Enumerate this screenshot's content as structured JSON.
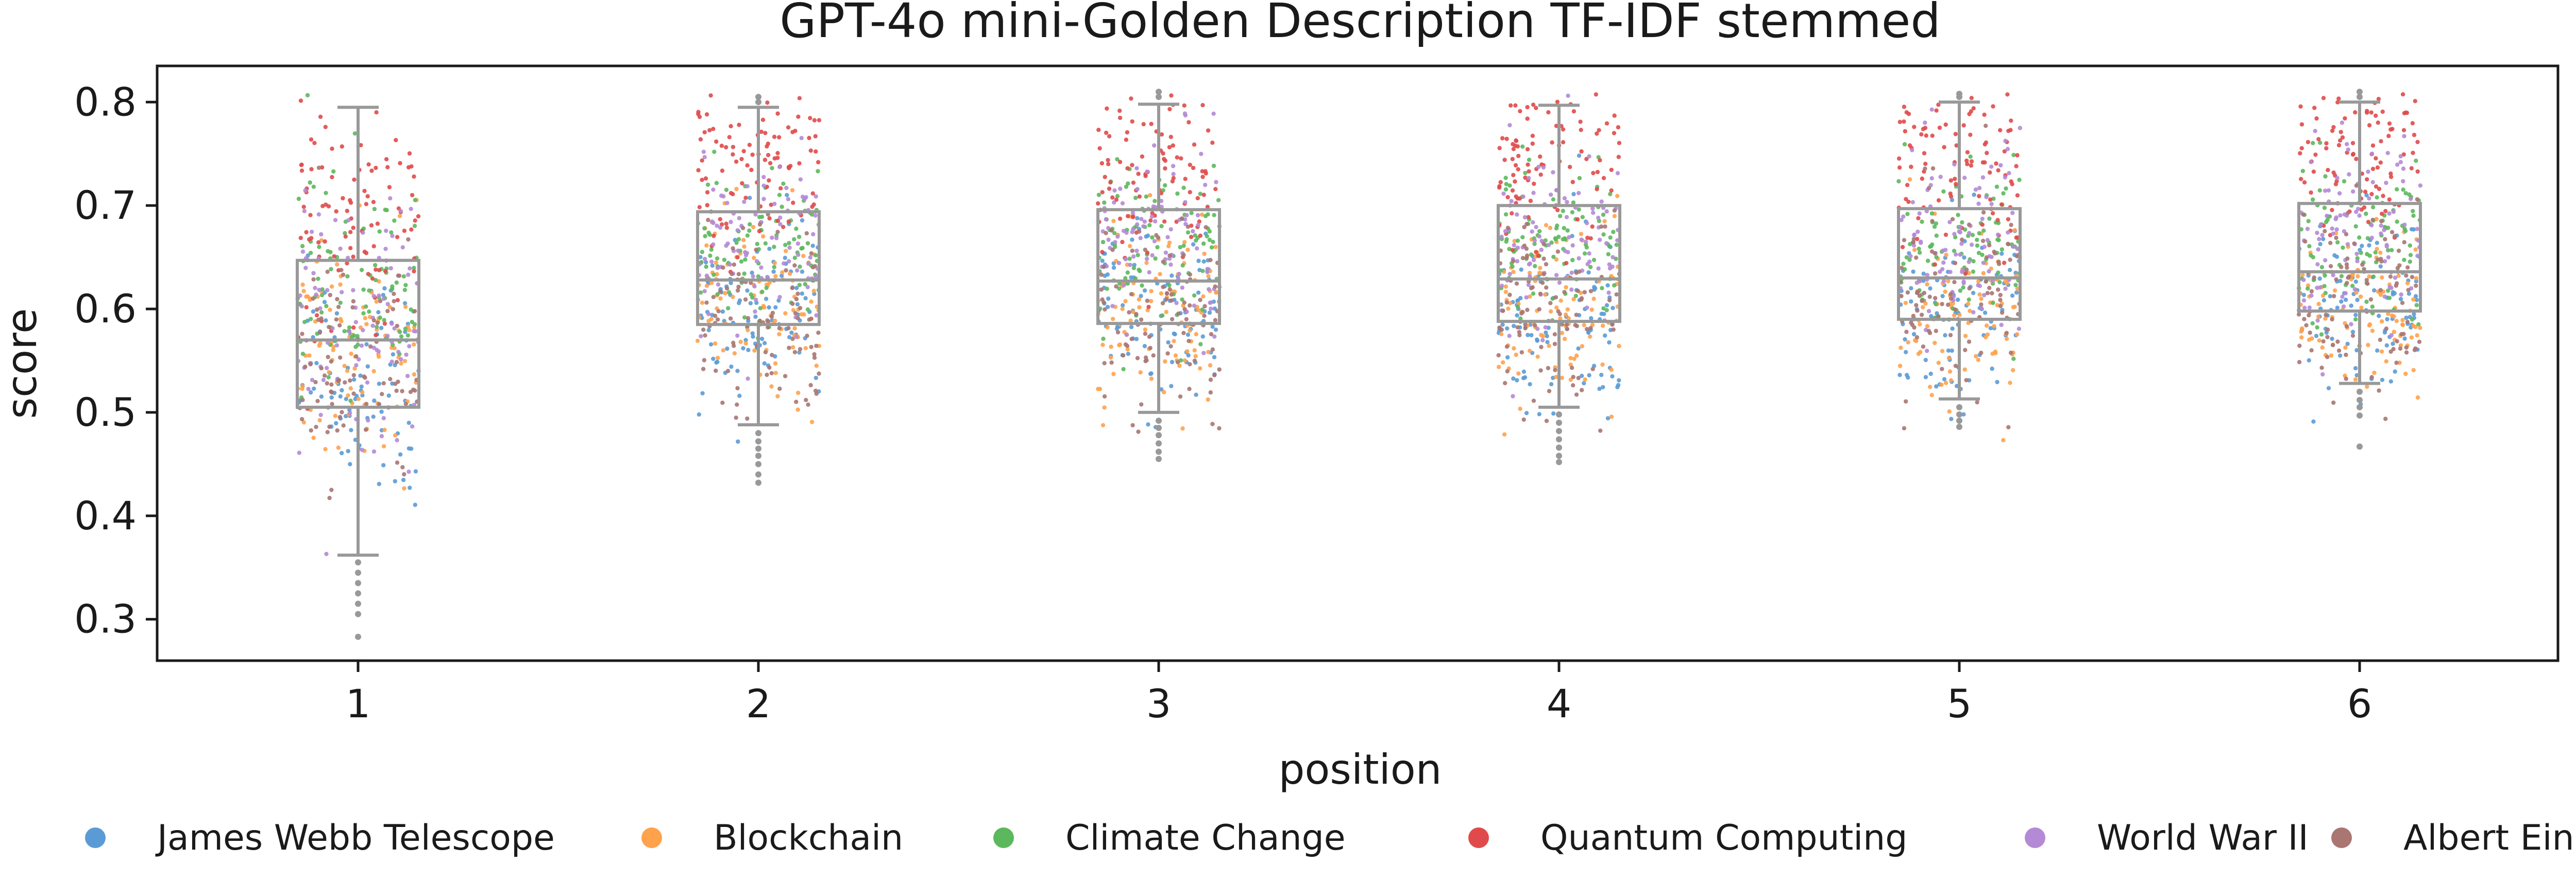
{
  "chart_data": {
    "type": "box+strip",
    "title": "GPT-4o mini-Golden Description TF-IDF stemmed",
    "xlabel": "position",
    "ylabel": "score",
    "categories": [
      "1",
      "2",
      "3",
      "4",
      "5",
      "6"
    ],
    "ylim": [
      0.26,
      0.835
    ],
    "yticks": [
      "0.3",
      "0.4",
      "0.5",
      "0.6",
      "0.7",
      "0.8"
    ],
    "legend_position": "bottom",
    "box_color": "#999999",
    "boxes": [
      {
        "position": "1",
        "q1": 0.505,
        "median": 0.57,
        "q3": 0.647,
        "whisker_low": 0.362,
        "whisker_high": 0.795,
        "outliers": [
          0.355,
          0.345,
          0.335,
          0.325,
          0.315,
          0.305,
          0.283
        ]
      },
      {
        "position": "2",
        "q1": 0.585,
        "median": 0.628,
        "q3": 0.694,
        "whisker_low": 0.488,
        "whisker_high": 0.795,
        "outliers": [
          0.48,
          0.472,
          0.465,
          0.458,
          0.45,
          0.44,
          0.432,
          0.8,
          0.805
        ]
      },
      {
        "position": "3",
        "q1": 0.586,
        "median": 0.627,
        "q3": 0.696,
        "whisker_low": 0.5,
        "whisker_high": 0.798,
        "outliers": [
          0.492,
          0.485,
          0.478,
          0.47,
          0.462,
          0.455,
          0.805,
          0.81
        ]
      },
      {
        "position": "4",
        "q1": 0.588,
        "median": 0.629,
        "q3": 0.7,
        "whisker_low": 0.505,
        "whisker_high": 0.797,
        "outliers": [
          0.498,
          0.49,
          0.482,
          0.474,
          0.466,
          0.458,
          0.452
        ]
      },
      {
        "position": "5",
        "q1": 0.59,
        "median": 0.63,
        "q3": 0.697,
        "whisker_low": 0.513,
        "whisker_high": 0.8,
        "outliers": [
          0.505,
          0.498,
          0.492,
          0.486,
          0.805,
          0.808
        ]
      },
      {
        "position": "6",
        "q1": 0.598,
        "median": 0.636,
        "q3": 0.702,
        "whisker_low": 0.528,
        "whisker_high": 0.8,
        "outliers": [
          0.52,
          0.512,
          0.505,
          0.497,
          0.467,
          0.805,
          0.81
        ]
      }
    ],
    "series": [
      {
        "name": "James Webb Telescope",
        "color": "#5b9bd5",
        "center": [
          0.53,
          0.6,
          0.595,
          0.595,
          0.605,
          0.61
        ],
        "spread": [
          0.06,
          0.045,
          0.045,
          0.045,
          0.042,
          0.04
        ]
      },
      {
        "name": "Blockchain",
        "color": "#ffa24c",
        "center": [
          0.56,
          0.595,
          0.592,
          0.597,
          0.598,
          0.605
        ],
        "spread": [
          0.055,
          0.045,
          0.045,
          0.045,
          0.045,
          0.04
        ]
      },
      {
        "name": "Climate Change",
        "color": "#5cb85c",
        "center": [
          0.62,
          0.655,
          0.655,
          0.66,
          0.66,
          0.665
        ],
        "spread": [
          0.05,
          0.04,
          0.04,
          0.04,
          0.04,
          0.04
        ]
      },
      {
        "name": "Quantum Computing",
        "color": "#e04a4a",
        "center": [
          0.69,
          0.735,
          0.735,
          0.74,
          0.74,
          0.745
        ],
        "spread": [
          0.055,
          0.04,
          0.04,
          0.04,
          0.04,
          0.038
        ]
      },
      {
        "name": "World War II",
        "color": "#b48ad6",
        "center": [
          0.58,
          0.66,
          0.665,
          0.665,
          0.67,
          0.675
        ],
        "spread": [
          0.065,
          0.045,
          0.045,
          0.045,
          0.045,
          0.045
        ]
      },
      {
        "name": "Albert Einstein",
        "color": "#a97672",
        "center": [
          0.54,
          0.595,
          0.6,
          0.6,
          0.605,
          0.61
        ],
        "spread": [
          0.06,
          0.045,
          0.045,
          0.045,
          0.045,
          0.045
        ]
      }
    ],
    "points_per_series": 95
  }
}
